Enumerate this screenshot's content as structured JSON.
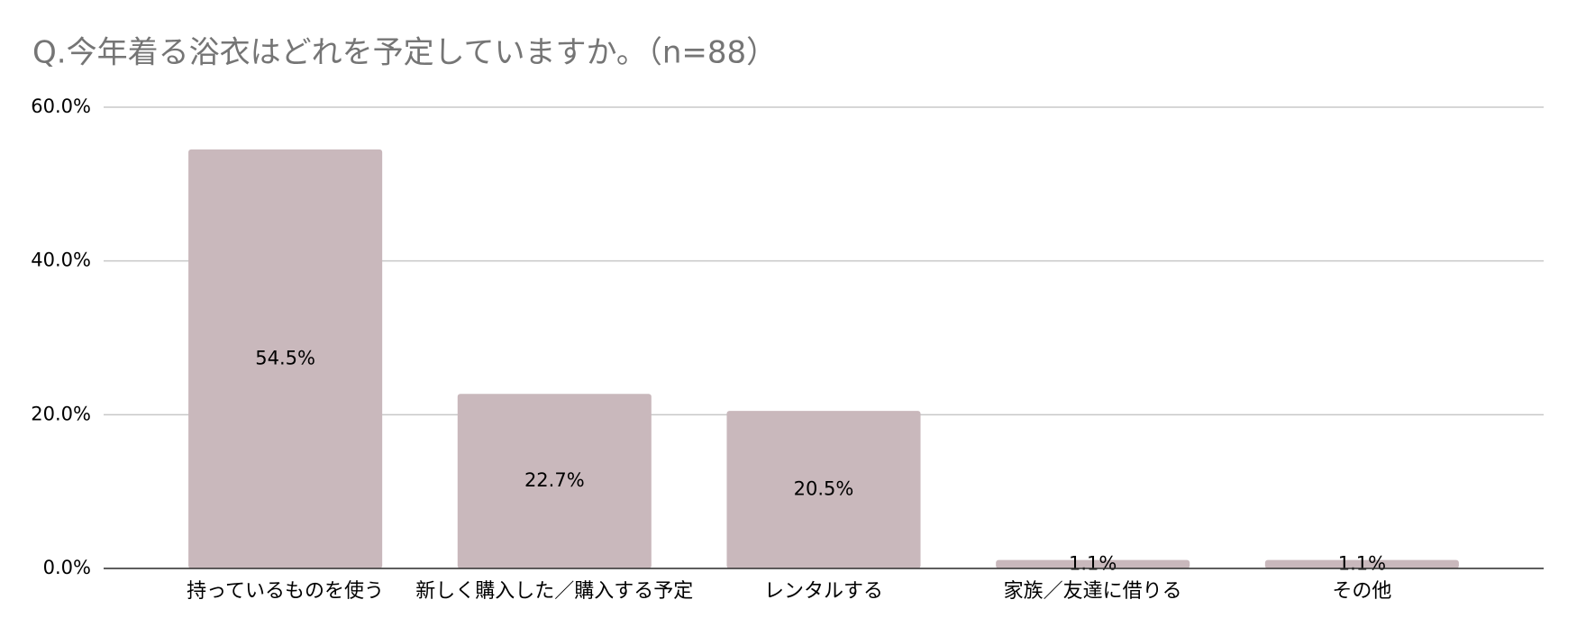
{
  "chart_data": {
    "type": "bar",
    "title": "Q.今年着る浴衣はどれを予定していますか。（n=88）",
    "categories": [
      "持っているものを使う",
      "新しく購入した／購入する予定",
      "レンタルする",
      "家族／友達に借りる",
      "その他"
    ],
    "values": [
      54.5,
      22.7,
      20.5,
      1.1,
      1.1
    ],
    "value_labels": [
      "54.5%",
      "22.7%",
      "20.5%",
      "1.1%",
      "1.1%"
    ],
    "color": "#c9b8bc",
    "ylim": [
      0,
      60
    ],
    "yticks": [
      {
        "value": 0,
        "label": "0.0%"
      },
      {
        "value": 20,
        "label": "20.0%"
      },
      {
        "value": 40,
        "label": "40.0%"
      },
      {
        "value": 60,
        "label": "60.0%"
      }
    ],
    "grid": true
  }
}
